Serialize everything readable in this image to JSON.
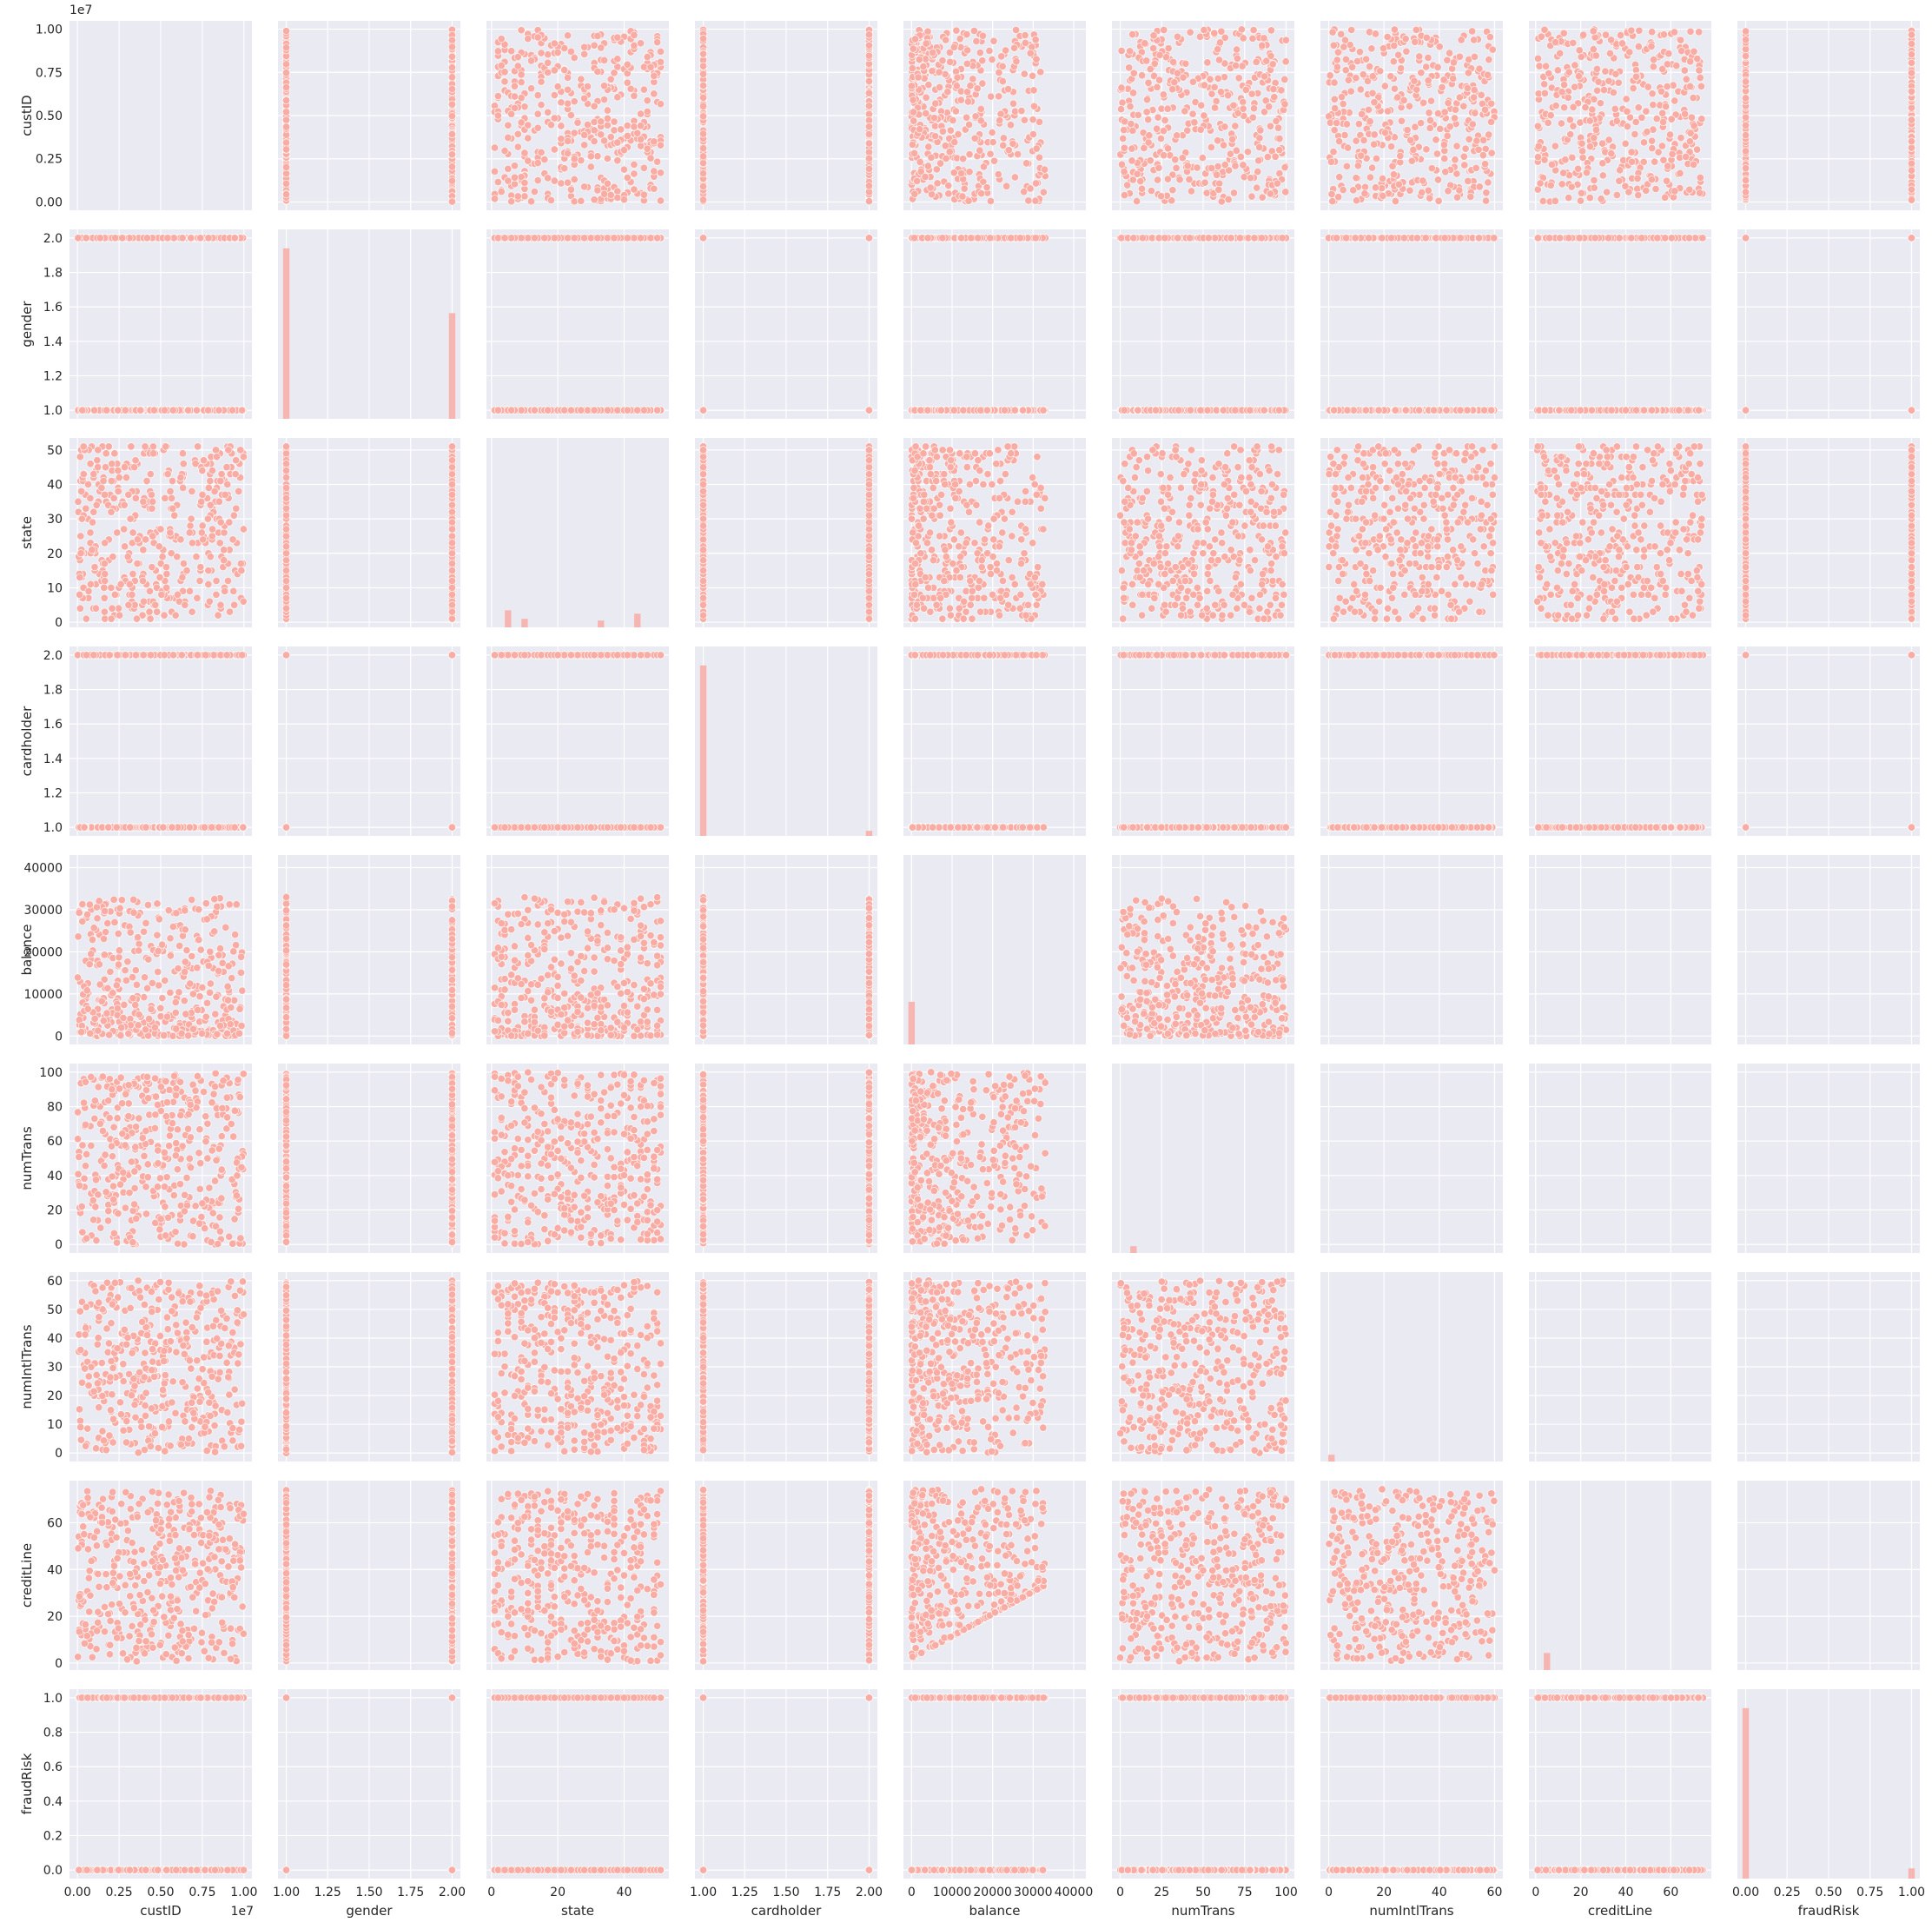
{
  "chart_data": {
    "type": "scatter",
    "kind": "pairplot",
    "style": {
      "panel_bg": "#eaeaf2",
      "grid": "#ffffff",
      "marker_fill": "#f8aca4",
      "marker_edge": "#ffffff",
      "hist_fill": "#f8aca4",
      "grid_on": true
    },
    "variables": [
      {
        "name": "custID",
        "lim": [
          -480000,
          10480000
        ],
        "ticks": [
          0,
          2500000,
          5000000,
          7500000,
          10000000
        ],
        "tick_labels": [
          "0.00",
          "0.25",
          "0.50",
          "0.75",
          "1.00"
        ],
        "offset_label": "1e7"
      },
      {
        "name": "gender",
        "lim": [
          0.95,
          2.05
        ],
        "ticks": [
          1.0,
          1.25,
          1.5,
          1.75,
          2.0
        ],
        "tick_labels": [
          "1.00",
          "1.25",
          "1.50",
          "1.75",
          "2.00"
        ],
        "y_ticks": [
          1.0,
          1.2,
          1.4,
          1.6,
          1.8,
          2.0
        ],
        "y_tick_labels": [
          "1.0",
          "1.2",
          "1.4",
          "1.6",
          "1.8",
          "2.0"
        ]
      },
      {
        "name": "state",
        "lim": [
          -1.5,
          53.5
        ],
        "ticks": [
          0,
          20,
          40
        ],
        "tick_labels": [
          "0",
          "20",
          "40"
        ],
        "y_ticks": [
          0,
          10,
          20,
          30,
          40,
          50
        ],
        "y_tick_labels": [
          "0",
          "10",
          "20",
          "30",
          "40",
          "50"
        ]
      },
      {
        "name": "cardholder",
        "lim": [
          0.95,
          2.05
        ],
        "ticks": [
          1.0,
          1.25,
          1.5,
          1.75,
          2.0
        ],
        "tick_labels": [
          "1.00",
          "1.25",
          "1.50",
          "1.75",
          "2.00"
        ],
        "y_ticks": [
          1.0,
          1.2,
          1.4,
          1.6,
          1.8,
          2.0
        ],
        "y_tick_labels": [
          "1.0",
          "1.2",
          "1.4",
          "1.6",
          "1.8",
          "2.0"
        ]
      },
      {
        "name": "balance",
        "lim": [
          -2000,
          43000
        ],
        "ticks": [
          0,
          10000,
          20000,
          30000,
          40000
        ],
        "tick_labels": [
          "0",
          "10000",
          "20000",
          "30000",
          "40000"
        ]
      },
      {
        "name": "numTrans",
        "lim": [
          -5,
          105
        ],
        "ticks": [
          0,
          25,
          50,
          75,
          100
        ],
        "tick_labels": [
          "0",
          "25",
          "50",
          "75",
          "100"
        ],
        "y_ticks": [
          0,
          20,
          40,
          60,
          80,
          100
        ],
        "y_tick_labels": [
          "0",
          "20",
          "40",
          "60",
          "80",
          "100"
        ]
      },
      {
        "name": "numIntlTrans",
        "lim": [
          -3,
          63
        ],
        "ticks": [
          0,
          20,
          40,
          60
        ],
        "tick_labels": [
          "0",
          "20",
          "40",
          "60"
        ],
        "y_ticks": [
          0,
          10,
          20,
          30,
          40,
          50,
          60
        ],
        "y_tick_labels": [
          "0",
          "10",
          "20",
          "30",
          "40",
          "50",
          "60"
        ]
      },
      {
        "name": "creditLine",
        "lim": [
          -3,
          78
        ],
        "ticks": [
          0,
          20,
          40,
          60
        ],
        "tick_labels": [
          "0",
          "20",
          "40",
          "60"
        ]
      },
      {
        "name": "fraudRisk",
        "lim": [
          -0.05,
          1.05
        ],
        "ticks": [
          0,
          0.25,
          0.5,
          0.75,
          1.0
        ],
        "tick_labels": [
          "0.00",
          "0.25",
          "0.50",
          "0.75",
          "1.00"
        ],
        "y_ticks": [
          0,
          0.2,
          0.4,
          0.6,
          0.8,
          1.0
        ],
        "y_tick_labels": [
          "0.0",
          "0.2",
          "0.4",
          "0.6",
          "0.8",
          "1.0"
        ]
      }
    ],
    "empty_panels": [
      [
        4,
        6
      ],
      [
        4,
        7
      ],
      [
        4,
        8
      ],
      [
        5,
        5
      ],
      [
        5,
        6
      ],
      [
        5,
        7
      ],
      [
        5,
        8
      ],
      [
        6,
        6
      ],
      [
        6,
        7
      ],
      [
        6,
        8
      ],
      [
        7,
        7
      ],
      [
        7,
        8
      ]
    ],
    "diagonal_hist": {
      "gender": [
        {
          "x": 1.0,
          "frac": 1.0
        },
        {
          "x": 2.0,
          "frac": 0.62
        }
      ],
      "cardholder": [
        {
          "x": 1.0,
          "frac": 1.0
        },
        {
          "x": 2.0,
          "frac": 0.03
        }
      ],
      "fraudRisk": [
        {
          "x": 0.0,
          "frac": 1.0
        },
        {
          "x": 1.0,
          "frac": 0.06
        }
      ],
      "balance": [
        {
          "x": 0,
          "frac": 0.25
        }
      ],
      "creditLine": [
        {
          "x": 5,
          "frac": 0.1
        }
      ],
      "numTrans": [
        {
          "x": 8,
          "frac": 0.04
        }
      ],
      "numIntlTrans": [
        {
          "x": 1,
          "frac": 0.04
        }
      ],
      "state": [
        {
          "x": 5,
          "frac": 0.1
        },
        {
          "x": 10,
          "frac": 0.05
        },
        {
          "x": 33,
          "frac": 0.04
        },
        {
          "x": 44,
          "frac": 0.08
        }
      ]
    }
  }
}
